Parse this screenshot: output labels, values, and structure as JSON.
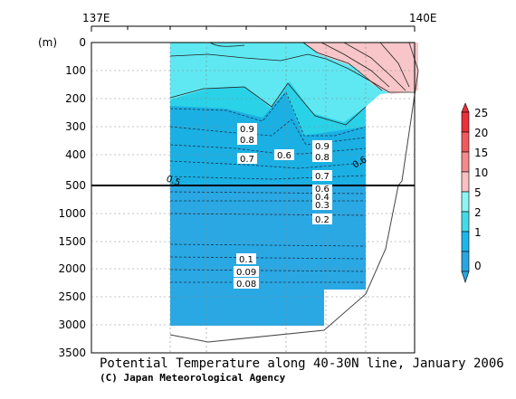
{
  "chart_data": {
    "type": "heatmap",
    "title": "Potential Temperature along 40-30N line, January 2006",
    "credit": "(C) Japan Meteorological Agency",
    "ylabel": "(m)",
    "x_ticks": [
      "137E",
      "140E"
    ],
    "y_ticks_upper": [
      "0",
      "100",
      "200",
      "300",
      "400",
      "500"
    ],
    "y_ticks_lower": [
      "1000",
      "1500",
      "2000",
      "2500",
      "3000",
      "3500"
    ],
    "y_split_depth": 500,
    "ylim": [
      0,
      3500
    ],
    "colorbar": {
      "levels": [
        "25",
        "20",
        "15",
        "10",
        "5",
        "2",
        "1",
        "0"
      ],
      "colors": [
        "#e8313a",
        "#ef5a5e",
        "#f38a8c",
        "#f8c0c0",
        "#8ff4f4",
        "#44dbe8",
        "#1eb5ea",
        "#2aa5e0"
      ]
    },
    "contour_labels": [
      "0.9",
      "0.8",
      "0.7",
      "0.6",
      "0.9",
      "0.8",
      "0.7",
      "0.6",
      "0.5",
      "0.6",
      "0.4",
      "0.3",
      "0.2",
      "0.1",
      "0.09",
      "0.08"
    ]
  }
}
